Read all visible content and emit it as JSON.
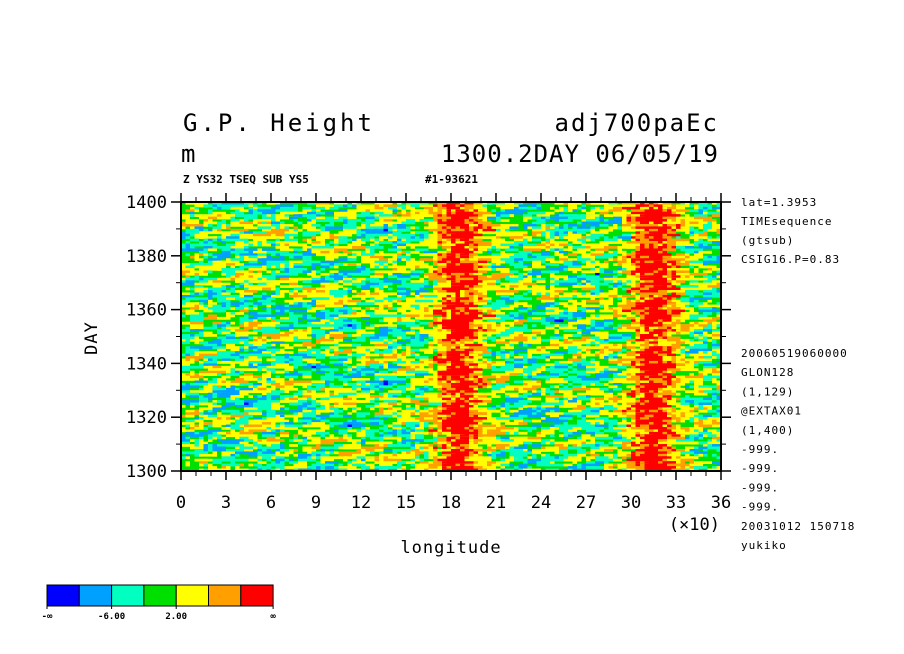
{
  "header": {
    "title_left": "G.P. Height",
    "title_right": "adj700paEc",
    "unit": "m",
    "time_label": "1300.2DAY 06/05/19",
    "sub_left": "Z YS32 TSEQ SUB YS5",
    "sub_right": "#1-93621"
  },
  "side_info": {
    "top": [
      "lat=1.3953",
      "TIMEsequence",
      "(gtsub)",
      "CSIG16.P=0.83"
    ],
    "bottom": [
      "20060519060000",
      "GLON128",
      "(1,129)",
      "@EXTAX01",
      "(1,400)",
      "-999.",
      "-999.",
      "-999.",
      "-999.",
      "20031012 150718",
      "yukiko"
    ]
  },
  "colorbar": {
    "colors": [
      "#0000ff",
      "#00a0ff",
      "#00ffc0",
      "#00e000",
      "#ffff00",
      "#ffa000",
      "#ff0000"
    ],
    "labels": [
      "-∞",
      "-6.00",
      "2.00",
      "∞"
    ]
  },
  "chart_data": {
    "type": "heatmap",
    "xlabel": "longitude",
    "ylabel": "DAY",
    "x_multiplier": "(×10)",
    "xlim": [
      0,
      36
    ],
    "ylim": [
      1300,
      1400
    ],
    "x_ticks": [
      "0",
      "3",
      "6",
      "9",
      "12",
      "15",
      "18",
      "21",
      "24",
      "27",
      "30",
      "33",
      "36"
    ],
    "y_ticks": [
      "1300",
      "1320",
      "1340",
      "1360",
      "1380",
      "1400"
    ],
    "features": [
      {
        "description": "high values band",
        "x_center": 18.5,
        "x_width": 3
      },
      {
        "description": "high values band",
        "x_center": 31.5,
        "x_width": 3
      }
    ]
  }
}
